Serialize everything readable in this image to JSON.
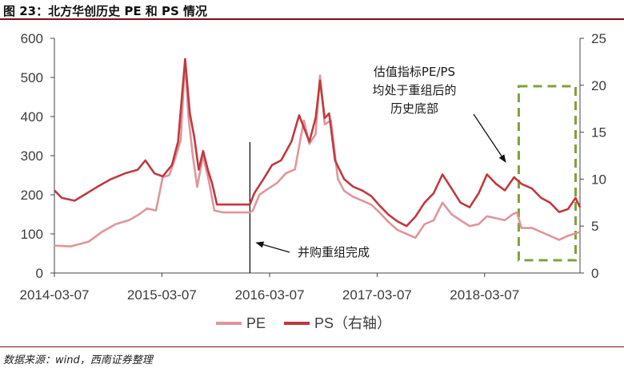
{
  "figure_title": "图 23：北方华创历史 PE 和 PS 情况",
  "source_note": "数据来源：wind，西南证券整理",
  "colors": {
    "pe": "#e0959b",
    "ps": "#bf3a40",
    "annotation_box": "#7ea23c",
    "axis": "#444444"
  },
  "chart_data": {
    "type": "line",
    "x_ticks": [
      "2014-03-07",
      "2015-03-07",
      "2016-03-07",
      "2017-03-07",
      "2018-03-07"
    ],
    "x_range": [
      "2014-03-07",
      "2019-01-25"
    ],
    "y_left": {
      "ticks": [
        0,
        100,
        200,
        300,
        400,
        500,
        600
      ],
      "range": [
        0,
        600
      ]
    },
    "y_right": {
      "ticks": [
        0,
        5,
        10,
        15,
        20,
        25
      ],
      "range": [
        0,
        25
      ]
    },
    "grid": false,
    "legend": {
      "position": "bottom-center",
      "entries": [
        "PE",
        "PS（右轴）"
      ]
    },
    "series": [
      {
        "name": "PE",
        "axis": "left",
        "points": [
          [
            "2014-03-07",
            70
          ],
          [
            "2014-05-01",
            68
          ],
          [
            "2014-07-01",
            80
          ],
          [
            "2014-08-15",
            105
          ],
          [
            "2014-10-01",
            125
          ],
          [
            "2014-11-15",
            135
          ],
          [
            "2014-12-20",
            150
          ],
          [
            "2015-01-15",
            165
          ],
          [
            "2015-02-15",
            160
          ],
          [
            "2015-03-10",
            245
          ],
          [
            "2015-04-01",
            250
          ],
          [
            "2015-04-20",
            290
          ],
          [
            "2015-05-10",
            340
          ],
          [
            "2015-05-25",
            545
          ],
          [
            "2015-06-05",
            400
          ],
          [
            "2015-06-20",
            300
          ],
          [
            "2015-07-05",
            220
          ],
          [
            "2015-07-25",
            300
          ],
          [
            "2015-08-15",
            230
          ],
          [
            "2015-09-01",
            160
          ],
          [
            "2015-10-01",
            155
          ],
          [
            "2015-11-20",
            155
          ],
          [
            "2015-12-31",
            155
          ],
          [
            "2016-01-10",
            160
          ],
          [
            "2016-02-01",
            200
          ],
          [
            "2016-03-01",
            215
          ],
          [
            "2016-04-01",
            230
          ],
          [
            "2016-05-01",
            255
          ],
          [
            "2016-06-01",
            265
          ],
          [
            "2016-07-01",
            390
          ],
          [
            "2016-07-20",
            330
          ],
          [
            "2016-08-10",
            355
          ],
          [
            "2016-08-25",
            505
          ],
          [
            "2016-09-10",
            380
          ],
          [
            "2016-10-01",
            390
          ],
          [
            "2016-10-25",
            240
          ],
          [
            "2016-11-15",
            210
          ],
          [
            "2016-12-15",
            195
          ],
          [
            "2017-01-15",
            185
          ],
          [
            "2017-02-15",
            175
          ],
          [
            "2017-03-15",
            155
          ],
          [
            "2017-04-15",
            130
          ],
          [
            "2017-05-15",
            110
          ],
          [
            "2017-06-15",
            100
          ],
          [
            "2017-07-15",
            90
          ],
          [
            "2017-08-15",
            125
          ],
          [
            "2017-09-15",
            135
          ],
          [
            "2017-10-15",
            180
          ],
          [
            "2017-11-15",
            150
          ],
          [
            "2017-12-15",
            135
          ],
          [
            "2018-01-15",
            120
          ],
          [
            "2018-02-15",
            125
          ],
          [
            "2018-03-15",
            145
          ],
          [
            "2018-04-15",
            140
          ],
          [
            "2018-05-15",
            135
          ],
          [
            "2018-06-10",
            150
          ],
          [
            "2018-06-25",
            155
          ],
          [
            "2018-07-10",
            115
          ],
          [
            "2018-08-15",
            115
          ],
          [
            "2018-09-15",
            105
          ],
          [
            "2018-10-15",
            95
          ],
          [
            "2018-11-15",
            85
          ],
          [
            "2018-12-15",
            95
          ],
          [
            "2019-01-25",
            105
          ]
        ]
      },
      {
        "name": "PS（右轴）",
        "axis": "right",
        "points": [
          [
            "2014-03-07",
            8.8
          ],
          [
            "2014-04-01",
            8.0
          ],
          [
            "2014-05-15",
            7.7
          ],
          [
            "2014-06-15",
            8.3
          ],
          [
            "2014-08-01",
            9.2
          ],
          [
            "2014-09-15",
            10.0
          ],
          [
            "2014-11-01",
            10.6
          ],
          [
            "2014-12-15",
            11.0
          ],
          [
            "2015-01-10",
            12.0
          ],
          [
            "2015-02-10",
            10.6
          ],
          [
            "2015-03-10",
            10.3
          ],
          [
            "2015-04-10",
            11.5
          ],
          [
            "2015-05-01",
            14.0
          ],
          [
            "2015-05-25",
            22.8
          ],
          [
            "2015-06-10",
            17.0
          ],
          [
            "2015-06-25",
            14.5
          ],
          [
            "2015-07-10",
            11.0
          ],
          [
            "2015-07-25",
            13.0
          ],
          [
            "2015-08-10",
            11.0
          ],
          [
            "2015-08-25",
            9.5
          ],
          [
            "2015-09-10",
            7.3
          ],
          [
            "2015-12-31",
            7.3
          ],
          [
            "2016-01-15",
            8.5
          ],
          [
            "2016-02-15",
            10.0
          ],
          [
            "2016-03-15",
            11.5
          ],
          [
            "2016-04-15",
            12.0
          ],
          [
            "2016-05-20",
            14.0
          ],
          [
            "2016-06-15",
            16.8
          ],
          [
            "2016-07-01",
            15.5
          ],
          [
            "2016-07-20",
            14.0
          ],
          [
            "2016-08-10",
            16.5
          ],
          [
            "2016-08-25",
            20.5
          ],
          [
            "2016-09-10",
            16.5
          ],
          [
            "2016-09-25",
            17.0
          ],
          [
            "2016-10-15",
            12.0
          ],
          [
            "2016-11-15",
            10.0
          ],
          [
            "2016-12-15",
            9.2
          ],
          [
            "2017-01-15",
            8.8
          ],
          [
            "2017-02-15",
            8.2
          ],
          [
            "2017-03-15",
            7.2
          ],
          [
            "2017-04-15",
            6.2
          ],
          [
            "2017-05-15",
            5.5
          ],
          [
            "2017-06-15",
            5.0
          ],
          [
            "2017-07-15",
            6.0
          ],
          [
            "2017-08-15",
            7.5
          ],
          [
            "2017-09-15",
            8.5
          ],
          [
            "2017-10-15",
            10.5
          ],
          [
            "2017-11-15",
            9.0
          ],
          [
            "2017-12-15",
            7.5
          ],
          [
            "2018-01-15",
            7.0
          ],
          [
            "2018-02-15",
            8.5
          ],
          [
            "2018-03-15",
            10.5
          ],
          [
            "2018-04-15",
            9.5
          ],
          [
            "2018-05-15",
            8.8
          ],
          [
            "2018-06-15",
            10.2
          ],
          [
            "2018-07-10",
            9.5
          ],
          [
            "2018-08-15",
            9.0
          ],
          [
            "2018-09-15",
            8.0
          ],
          [
            "2018-10-15",
            7.5
          ],
          [
            "2018-11-15",
            6.5
          ],
          [
            "2018-12-15",
            6.8
          ],
          [
            "2019-01-10",
            8.0
          ],
          [
            "2019-01-25",
            7.0
          ]
        ]
      }
    ],
    "annotations": [
      {
        "text": "并购重组完成",
        "marker_date": "2015-12-31"
      },
      {
        "text_lines": [
          "估值指标PE/PS",
          "均处于重组后的",
          "历史底部"
        ],
        "box_range": [
          "2018-07-01",
          "2019-01-10"
        ]
      }
    ]
  }
}
